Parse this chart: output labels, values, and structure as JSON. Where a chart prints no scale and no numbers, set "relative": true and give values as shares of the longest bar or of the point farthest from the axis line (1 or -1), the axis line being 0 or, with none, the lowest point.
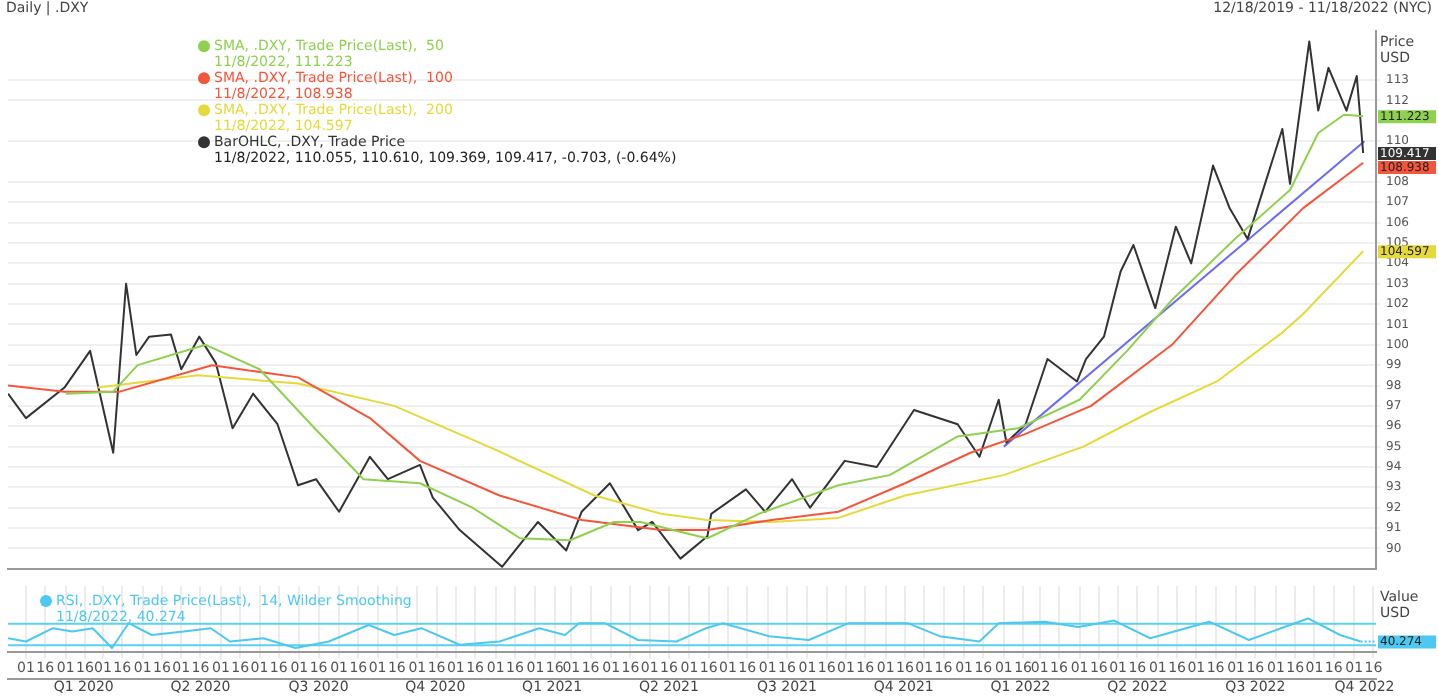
{
  "chart_data": [
    {
      "type": "line",
      "title": "Daily | .DXY",
      "subtitle": "12/18/2019 - 11/18/2022 (NYC)",
      "ylabel": "Price USD",
      "xlim": [
        "2019-12-18",
        "2022-11-18"
      ],
      "ylim": [
        89,
        115.4
      ],
      "yticks": [
        90,
        91,
        92,
        93,
        94,
        95,
        96,
        97,
        98,
        99,
        100,
        101,
        102,
        103,
        104,
        105,
        106,
        107,
        108,
        110,
        112,
        113
      ],
      "tick_labels": "y",
      "grid": true,
      "legend": "top left",
      "marker": "none",
      "line_style": "solid",
      "annotations": [
        "11/8/2022, 111.223",
        "11/8/2022, 108.938",
        "11/8/2022, 104.597",
        "11/8/2022, 110.055, 110.610, 109.369, 109.417, -0.703, (-0.64%)"
      ],
      "series": [
        {
          "name": "SMA, .DXY, Trade Price(Last),  50",
          "color": "#8fd14f",
          "x": [
            "2020-02-01",
            "2020-03-09",
            "2020-03-28",
            "2020-05-20",
            "2020-07-01",
            "2020-08-10",
            "2020-09-20",
            "2020-11-03",
            "2020-12-14",
            "2021-01-20",
            "2021-02-28",
            "2021-04-03",
            "2021-04-24",
            "2021-06-08",
            "2021-06-15",
            "2021-07-25",
            "2021-09-25",
            "2021-11-04",
            "2021-12-27",
            "2022-02-12",
            "2022-04-01",
            "2022-05-08",
            "2022-06-12",
            "2022-07-31",
            "2022-09-12",
            "2022-10-04",
            "2022-10-24",
            "2022-11-08"
          ],
          "values": [
            97.6,
            97.7,
            99.0,
            100.0,
            98.8,
            96.1,
            93.4,
            93.2,
            92.0,
            90.5,
            90.4,
            91.3,
            91.3,
            90.6,
            90.5,
            91.7,
            93.1,
            93.6,
            95.5,
            95.9,
            97.3,
            99.7,
            102.2,
            105.2,
            107.6,
            110.4,
            111.3,
            111.223
          ],
          "value_labels": [
            null,
            null,
            null,
            null,
            null,
            null,
            null,
            null,
            null,
            null,
            null,
            null,
            null,
            null,
            null,
            null,
            null,
            null,
            null,
            null,
            null,
            null,
            null,
            null,
            null,
            null,
            null,
            "111.223"
          ]
        },
        {
          "name": "SMA, .DXY, Trade Price(Last),  100",
          "color": "#f5553b",
          "x": [
            "2019-12-18",
            "2020-01-31",
            "2020-03-14",
            "2020-05-25",
            "2020-07-31",
            "2020-09-25",
            "2020-11-03",
            "2021-01-04",
            "2021-03-09",
            "2021-05-10",
            "2021-06-15",
            "2021-08-04",
            "2021-09-25",
            "2021-11-16",
            "2022-01-06",
            "2022-02-17",
            "2022-04-10",
            "2022-06-12",
            "2022-07-31",
            "2022-09-22",
            "2022-11-08"
          ],
          "values": [
            98.0,
            97.7,
            97.7,
            99.0,
            98.4,
            96.4,
            94.3,
            92.6,
            91.4,
            90.9,
            90.9,
            91.4,
            91.8,
            93.2,
            94.7,
            95.6,
            97.0,
            100.0,
            103.4,
            106.7,
            108.938
          ],
          "value_labels": [
            null,
            null,
            null,
            null,
            null,
            null,
            null,
            null,
            null,
            null,
            null,
            null,
            null,
            null,
            null,
            null,
            null,
            null,
            null,
            null,
            "108.938"
          ]
        },
        {
          "name": "SMA, .DXY, Trade Price(Last),  200",
          "color": "#e6d93a",
          "x": [
            "2020-02-26",
            "2020-05-14",
            "2020-07-31",
            "2020-10-14",
            "2020-12-30",
            "2021-03-19",
            "2021-05-10",
            "2021-06-15",
            "2021-08-04",
            "2021-09-25",
            "2021-11-16",
            "2022-02-01",
            "2022-04-04",
            "2022-05-26",
            "2022-07-17",
            "2022-09-06",
            "2022-09-22",
            "2022-11-08"
          ],
          "values": [
            97.9,
            98.5,
            98.1,
            97.0,
            94.9,
            92.6,
            91.7,
            91.4,
            91.3,
            91.5,
            92.6,
            93.6,
            95.0,
            96.7,
            98.2,
            100.6,
            101.5,
            104.597
          ],
          "value_labels": [
            null,
            null,
            null,
            null,
            null,
            null,
            null,
            null,
            null,
            null,
            null,
            null,
            null,
            null,
            null,
            null,
            null,
            "104.597"
          ]
        },
        {
          "name": "BarOHLC, .DXY, Trade Price",
          "color": "#333333",
          "x": [
            "2019-12-18",
            "2020-01-01",
            "2020-01-31",
            "2020-02-20",
            "2020-03-09",
            "2020-03-19",
            "2020-03-27",
            "2020-04-06",
            "2020-04-23",
            "2020-05-01",
            "2020-05-15",
            "2020-05-28",
            "2020-06-10",
            "2020-06-26",
            "2020-07-15",
            "2020-07-31",
            "2020-08-14",
            "2020-09-01",
            "2020-09-25",
            "2020-10-09",
            "2020-11-03",
            "2020-11-13",
            "2020-12-04",
            "2021-01-06",
            "2021-02-03",
            "2021-02-25",
            "2021-03-09",
            "2021-03-31",
            "2021-04-22",
            "2021-05-03",
            "2021-05-25",
            "2021-06-15",
            "2021-06-18",
            "2021-07-15",
            "2021-07-30",
            "2021-08-20",
            "2021-09-03",
            "2021-09-30",
            "2021-10-25",
            "2021-11-23",
            "2021-12-27",
            "2022-01-13",
            "2022-01-28",
            "2022-02-03",
            "2022-02-18",
            "2022-03-07",
            "2022-03-30",
            "2022-04-06",
            "2022-04-20",
            "2022-05-03",
            "2022-05-13",
            "2022-05-30",
            "2022-06-15",
            "2022-06-27",
            "2022-07-14",
            "2022-07-27",
            "2022-08-10",
            "2022-09-06",
            "2022-09-12",
            "2022-09-27",
            "2022-10-04",
            "2022-10-12",
            "2022-10-26",
            "2022-11-03",
            "2022-11-08"
          ],
          "values": [
            97.6,
            96.4,
            97.9,
            99.7,
            94.7,
            103.0,
            99.5,
            100.4,
            100.5,
            98.8,
            100.4,
            99.1,
            95.9,
            97.6,
            96.1,
            93.1,
            93.4,
            91.8,
            94.5,
            93.4,
            94.1,
            92.5,
            90.9,
            89.1,
            91.3,
            89.9,
            91.8,
            93.2,
            90.9,
            91.3,
            89.5,
            90.6,
            91.7,
            92.9,
            91.8,
            93.4,
            92.0,
            94.3,
            94.0,
            96.8,
            96.1,
            94.5,
            97.3,
            95.2,
            96.1,
            99.3,
            98.2,
            99.3,
            100.4,
            103.6,
            104.9,
            101.8,
            105.8,
            104.0,
            108.8,
            106.7,
            105.2,
            110.6,
            107.9,
            114.9,
            111.5,
            113.6,
            111.5,
            113.2,
            109.417
          ],
          "value_labels": [
            null,
            null,
            null,
            null,
            null,
            null,
            null,
            null,
            null,
            null,
            null,
            null,
            null,
            null,
            null,
            null,
            null,
            null,
            null,
            null,
            null,
            null,
            null,
            null,
            null,
            null,
            null,
            null,
            null,
            null,
            null,
            null,
            null,
            null,
            null,
            null,
            null,
            null,
            null,
            null,
            null,
            null,
            null,
            null,
            null,
            null,
            null,
            null,
            null,
            null,
            null,
            null,
            null,
            null,
            null,
            null,
            null,
            null,
            null,
            null,
            null,
            null,
            null,
            null,
            "109.417"
          ]
        },
        {
          "color": "#6b6bf5",
          "x": [
            "2022-02-01",
            "2022-11-09"
          ],
          "values": [
            95.0,
            110.0
          ]
        }
      ]
    },
    {
      "type": "line",
      "ylabel": "Value USD",
      "relative": true,
      "tick_labels": "x",
      "grid": true,
      "legend": "top left",
      "marker": "none",
      "line_style": "solid",
      "xlim": [
        "2019-12-18",
        "2022-11-18"
      ],
      "xticks": [
        {
          "value": "2020-01-01",
          "label": "01"
        },
        {
          "value": "2020-01-16",
          "label": "16"
        },
        {
          "value": "2020-02-01",
          "label": "01"
        },
        {
          "value": "2020-02-16",
          "label": "16"
        },
        {
          "value": "2020-03-01",
          "label": "01"
        },
        {
          "value": "2020-03-16",
          "label": "16"
        },
        {
          "value": "2020-04-01",
          "label": "01"
        },
        {
          "value": "2020-04-16",
          "label": "16"
        },
        {
          "value": "2020-05-01",
          "label": "01"
        },
        {
          "value": "2020-05-16",
          "label": "16"
        },
        {
          "value": "2020-06-01",
          "label": "01"
        },
        {
          "value": "2020-06-16",
          "label": "16"
        },
        {
          "value": "2020-07-01",
          "label": "01"
        },
        {
          "value": "2020-07-16",
          "label": "16"
        },
        {
          "value": "2020-08-01",
          "label": "01"
        },
        {
          "value": "2020-08-16",
          "label": "16"
        },
        {
          "value": "2020-09-01",
          "label": "01"
        },
        {
          "value": "2020-09-16",
          "label": "16"
        },
        {
          "value": "2020-10-01",
          "label": "01"
        },
        {
          "value": "2020-10-16",
          "label": "16"
        },
        {
          "value": "2020-11-01",
          "label": "01"
        },
        {
          "value": "2020-11-16",
          "label": "16"
        },
        {
          "value": "2020-12-01",
          "label": "01"
        },
        {
          "value": "2020-12-16",
          "label": "16"
        },
        {
          "value": "2021-01-01",
          "label": "01"
        },
        {
          "value": "2021-01-16",
          "label": "16"
        },
        {
          "value": "2021-02-01",
          "label": "01"
        },
        {
          "value": "2021-02-16",
          "label": "16"
        },
        {
          "value": "2021-03-01",
          "label": "01"
        },
        {
          "value": "2021-03-16",
          "label": "16"
        },
        {
          "value": "2021-04-01",
          "label": "01"
        },
        {
          "value": "2021-04-16",
          "label": "16"
        },
        {
          "value": "2021-05-01",
          "label": "01"
        },
        {
          "value": "2021-05-16",
          "label": "16"
        },
        {
          "value": "2021-06-01",
          "label": "01"
        },
        {
          "value": "2021-06-16",
          "label": "16"
        },
        {
          "value": "2021-07-01",
          "label": "01"
        },
        {
          "value": "2021-07-16",
          "label": "16"
        },
        {
          "value": "2021-08-01",
          "label": "01"
        },
        {
          "value": "2021-08-16",
          "label": "16"
        },
        {
          "value": "2021-09-01",
          "label": "01"
        },
        {
          "value": "2021-09-16",
          "label": "16"
        },
        {
          "value": "2021-10-01",
          "label": "01"
        },
        {
          "value": "2021-10-16",
          "label": "16"
        },
        {
          "value": "2021-11-01",
          "label": "01"
        },
        {
          "value": "2021-11-16",
          "label": "16"
        },
        {
          "value": "2021-12-01",
          "label": "01"
        },
        {
          "value": "2021-12-16",
          "label": "16"
        },
        {
          "value": "2022-01-01",
          "label": "01"
        },
        {
          "value": "2022-01-16",
          "label": "16"
        },
        {
          "value": "2022-02-01",
          "label": "01"
        },
        {
          "value": "2022-02-16",
          "label": "16"
        },
        {
          "value": "2022-03-01",
          "label": "01"
        },
        {
          "value": "2022-03-16",
          "label": "16"
        },
        {
          "value": "2022-04-01",
          "label": "01"
        },
        {
          "value": "2022-04-16",
          "label": "16"
        },
        {
          "value": "2022-05-01",
          "label": "01"
        },
        {
          "value": "2022-05-16",
          "label": "16"
        },
        {
          "value": "2022-06-01",
          "label": "01"
        },
        {
          "value": "2022-06-16",
          "label": "16"
        },
        {
          "value": "2022-07-01",
          "label": "01"
        },
        {
          "value": "2022-07-16",
          "label": "16"
        },
        {
          "value": "2022-08-01",
          "label": "01"
        },
        {
          "value": "2022-08-16",
          "label": "16"
        },
        {
          "value": "2022-09-01",
          "label": "01"
        },
        {
          "value": "2022-09-16",
          "label": "16"
        },
        {
          "value": "2022-10-01",
          "label": "01"
        },
        {
          "value": "2022-10-16",
          "label": "16"
        },
        {
          "value": "2022-11-01",
          "label": "01"
        },
        {
          "value": "2022-11-16",
          "label": "16"
        }
      ],
      "x2lim": [
        "2019-12-18",
        "2022-11-18"
      ],
      "x2ticks": [
        {
          "value": "2020-02-15",
          "label": "Q1 2020"
        },
        {
          "value": "2020-05-16",
          "label": "Q2 2020"
        },
        {
          "value": "2020-08-16",
          "label": "Q3 2020"
        },
        {
          "value": "2020-11-15",
          "label": "Q4 2020"
        },
        {
          "value": "2021-02-14",
          "label": "Q1 2021"
        },
        {
          "value": "2021-05-16",
          "label": "Q2 2021"
        },
        {
          "value": "2021-08-16",
          "label": "Q3 2021"
        },
        {
          "value": "2021-11-15",
          "label": "Q4 2021"
        },
        {
          "value": "2022-02-14",
          "label": "Q1 2022"
        },
        {
          "value": "2022-05-16",
          "label": "Q2 2022"
        },
        {
          "value": "2022-08-16",
          "label": "Q3 2022"
        },
        {
          "value": "2022-11-09",
          "label": "Q4 2022"
        }
      ],
      "annotations": [
        "11/8/2022, 40.274",
        {
          "text": "40.274",
          "x": "2022-11-06",
          "y": 0.22
        }
      ],
      "ref_lines": [
        {
          "axis": "y",
          "value": 0.82,
          "color": "#5bd0f0"
        },
        {
          "axis": "y",
          "value": 0.09,
          "color": "#5bd0f0"
        }
      ],
      "series": [
        {
          "name": "RSI, .DXY, Trade Price(Last),  14, Wilder Smoothing",
          "color": "#4dc8f0",
          "x": [
            "2019-12-18",
            "2020-01-01",
            "2020-01-22",
            "2020-02-06",
            "2020-02-22",
            "2020-03-08",
            "2020-03-21",
            "2020-04-08",
            "2020-05-03",
            "2020-05-24",
            "2020-06-08",
            "2020-07-04",
            "2020-07-29",
            "2020-08-24",
            "2020-09-24",
            "2020-10-14",
            "2020-11-04",
            "2020-12-04",
            "2021-01-04",
            "2021-02-04",
            "2021-02-24",
            "2021-03-07",
            "2021-03-27",
            "2021-04-22",
            "2021-05-22",
            "2021-06-14",
            "2021-06-27",
            "2021-08-02",
            "2021-09-02",
            "2021-10-03",
            "2021-11-18",
            "2021-12-13",
            "2022-01-13",
            "2022-01-28",
            "2022-03-05",
            "2022-03-31",
            "2022-04-28",
            "2022-05-26",
            "2022-07-11",
            "2022-08-11",
            "2022-09-05",
            "2022-09-26",
            "2022-10-21",
            "2022-11-06"
          ],
          "values": [
            0.33,
            0.22,
            0.67,
            0.56,
            0.67,
            0,
            0.84,
            0.44,
            0.56,
            0.67,
            0.22,
            0.33,
            0,
            0.22,
            0.78,
            0.44,
            0.67,
            0.11,
            0.22,
            0.67,
            0.44,
            0.84,
            0.84,
            0.27,
            0.22,
            0.67,
            0.84,
            0.4,
            0.27,
            0.84,
            0.84,
            0.4,
            0.22,
            0.84,
            0.89,
            0.71,
            0.93,
            0.33,
            0.89,
            0.27,
            0.67,
            1,
            0.44,
            0.22
          ]
        }
      ]
    }
  ]
}
